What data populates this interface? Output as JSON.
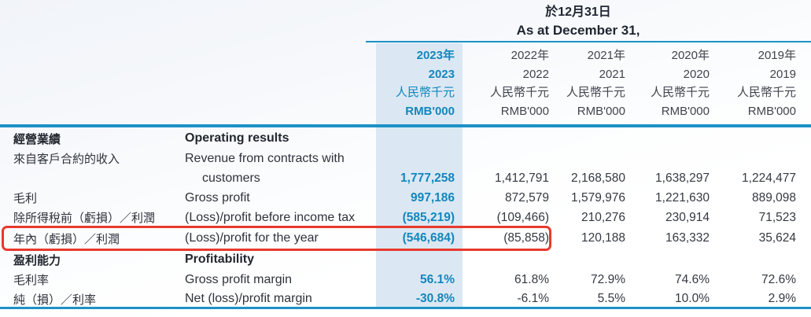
{
  "header": {
    "title_zh": "於12月31日",
    "title_en": "As at December 31,"
  },
  "columns": [
    {
      "year_zh": "2023年",
      "year": "2023",
      "unit_zh": "人民幣千元",
      "unit": "RMB'000",
      "highlight": true
    },
    {
      "year_zh": "2022年",
      "year": "2022",
      "unit_zh": "人民幣千元",
      "unit": "RMB'000",
      "highlight": false
    },
    {
      "year_zh": "2021年",
      "year": "2021",
      "unit_zh": "人民幣千元",
      "unit": "RMB'000",
      "highlight": false
    },
    {
      "year_zh": "2020年",
      "year": "2020",
      "unit_zh": "人民幣千元",
      "unit": "RMB'000",
      "highlight": false
    },
    {
      "year_zh": "2019年",
      "year": "2019",
      "unit_zh": "人民幣千元",
      "unit": "RMB'000",
      "highlight": false
    }
  ],
  "rows": [
    {
      "type": "section",
      "zh": "經營業績",
      "en": "Operating results"
    },
    {
      "type": "data",
      "zh": "來自客戶合約的收入",
      "en": "Revenue from contracts with",
      "en2": "customers",
      "values": [
        "1,777,258",
        "1,412,791",
        "2,168,580",
        "1,638,297",
        "1,224,477"
      ]
    },
    {
      "type": "data",
      "zh": "毛利",
      "en": "Gross profit",
      "values": [
        "997,186",
        "872,579",
        "1,579,976",
        "1,221,630",
        "889,098"
      ]
    },
    {
      "type": "data",
      "zh": "除所得稅前（虧損）／利潤",
      "en": "(Loss)/profit before income tax",
      "values": [
        "(585,219)",
        "(109,466)",
        "210,276",
        "230,914",
        "71,523"
      ]
    },
    {
      "type": "data",
      "zh": "年內（虧損）／利潤",
      "en": "(Loss)/profit for the year",
      "boxed": true,
      "values": [
        "(546,684)",
        "(85,858)",
        "120,188",
        "163,332",
        "35,624"
      ]
    },
    {
      "type": "section",
      "zh": "盈利能力",
      "en": "Profitability"
    },
    {
      "type": "data",
      "zh": "毛利率",
      "en": "Gross profit margin",
      "values": [
        "56.1%",
        "61.8%",
        "72.9%",
        "74.6%",
        "72.6%"
      ]
    },
    {
      "type": "data",
      "zh": "純（損）／利率",
      "en": "Net (loss)/profit margin",
      "values": [
        "-30.8%",
        "-6.1%",
        "5.5%",
        "10.0%",
        "2.9%"
      ]
    }
  ],
  "colors": {
    "accent_blue": "#1486bd",
    "rule_blue": "#1d92c6",
    "highlight_bg": "#dbe8f3",
    "annotation_red": "#e8392c",
    "text_dark": "#2e323b"
  }
}
